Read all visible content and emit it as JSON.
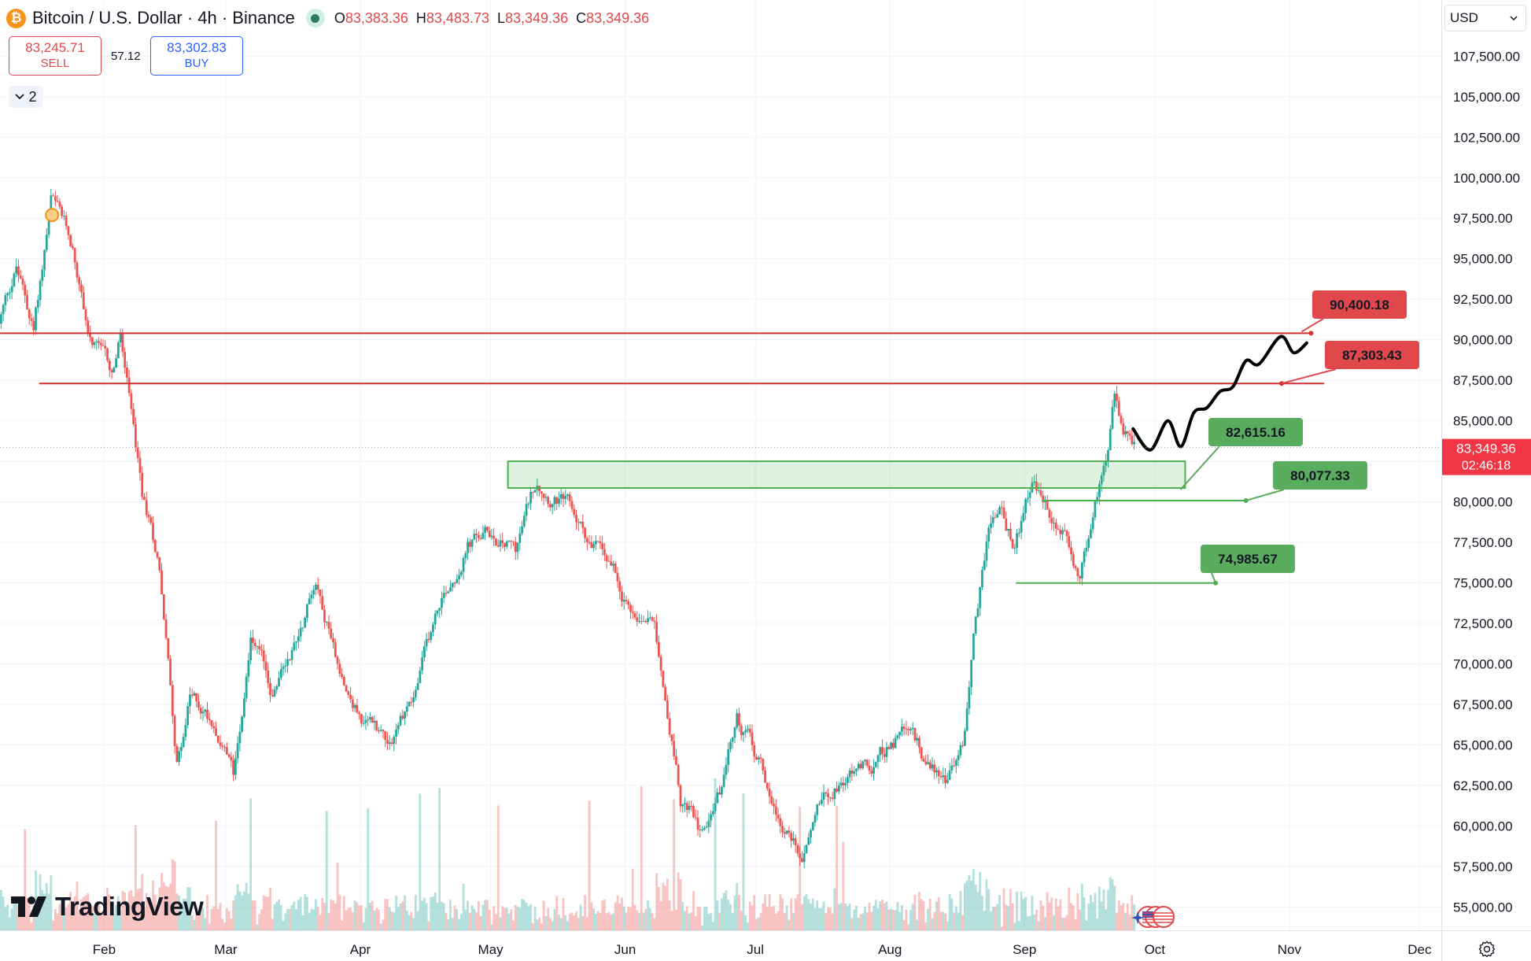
{
  "header": {
    "symbol_title": "Bitcoin / U.S. Dollar · 4h · Binance",
    "coin_glyph": "₿",
    "ohlc": [
      {
        "key": "O",
        "value": "83,383.36"
      },
      {
        "key": "H",
        "value": "83,483.73"
      },
      {
        "key": "L",
        "value": "83,349.36"
      },
      {
        "key": "C",
        "value": "83,349.36"
      }
    ]
  },
  "trade_panel": {
    "sell_price": "83,245.71",
    "sell_label": "SELL",
    "spread": "57.12",
    "buy_price": "83,302.83",
    "buy_label": "BUY"
  },
  "indicator_toggle": {
    "count": "2"
  },
  "currency_selector": {
    "value": "USD"
  },
  "brand": {
    "name": "TradingView"
  },
  "colors": {
    "up": "#26a69a",
    "down": "#ef5350",
    "resistance": "#d32f2f",
    "support": "#4caf50",
    "price_label": "#f23645",
    "grid": "#f0f3fa"
  },
  "chart_data": {
    "type": "candlestick",
    "symbol": "BTCUSD",
    "interval": "4h",
    "exchange": "Binance",
    "x_tick_labels": [
      "Feb",
      "Mar",
      "Apr",
      "May",
      "Jun",
      "Jul",
      "Aug",
      "Sep",
      "Oct",
      "Nov",
      "Dec"
    ],
    "x_range": [
      "2025-01-08",
      "2025-12-06"
    ],
    "y_tick_values": [
      55000,
      57500,
      60000,
      62500,
      65000,
      67500,
      70000,
      72500,
      75000,
      77500,
      80000,
      82500,
      85000,
      87500,
      90000,
      92500,
      95000,
      97500,
      100000,
      102500,
      105000,
      107500
    ],
    "y_tick_labels": [
      "55,000.00",
      "57,500.00",
      "60,000.00",
      "62,500.00",
      "65,000.00",
      "67,500.00",
      "70,000.00",
      "72,500.00",
      "75,000.00",
      "77,500.00",
      "80,000.00",
      "82,500.00",
      "85,000.00",
      "87,500.00",
      "90,000.00",
      "92,500.00",
      "95,000.00",
      "97,500.00",
      "100,000.00",
      "102,500.00",
      "105,000.00",
      "107,500.00"
    ],
    "ylim": [
      53800,
      109800
    ],
    "price_path": [
      {
        "date": "2025-01-08",
        "price": 91000
      },
      {
        "date": "2025-01-12",
        "price": 94500
      },
      {
        "date": "2025-01-16",
        "price": 90500
      },
      {
        "date": "2025-01-20",
        "price": 98500
      },
      {
        "date": "2025-01-25",
        "price": 95500
      },
      {
        "date": "2025-01-29",
        "price": 90000
      },
      {
        "date": "2025-02-03",
        "price": 87500
      },
      {
        "date": "2025-02-05",
        "price": 90000
      },
      {
        "date": "2025-02-10",
        "price": 80000
      },
      {
        "date": "2025-02-14",
        "price": 76000
      },
      {
        "date": "2025-02-18",
        "price": 64000
      },
      {
        "date": "2025-02-21",
        "price": 68000
      },
      {
        "date": "2025-02-27",
        "price": 66500
      },
      {
        "date": "2025-03-03",
        "price": 63000
      },
      {
        "date": "2025-03-07",
        "price": 72000
      },
      {
        "date": "2025-03-12",
        "price": 68000
      },
      {
        "date": "2025-03-18",
        "price": 72000
      },
      {
        "date": "2025-03-22",
        "price": 75500
      },
      {
        "date": "2025-03-27",
        "price": 70500
      },
      {
        "date": "2025-04-02",
        "price": 66500
      },
      {
        "date": "2025-04-08",
        "price": 65500
      },
      {
        "date": "2025-04-14",
        "price": 68500
      },
      {
        "date": "2025-04-20",
        "price": 74000
      },
      {
        "date": "2025-04-26",
        "price": 77500
      },
      {
        "date": "2025-05-02",
        "price": 78000
      },
      {
        "date": "2025-05-07",
        "price": 77000
      },
      {
        "date": "2025-05-12",
        "price": 81500
      },
      {
        "date": "2025-05-18",
        "price": 80000
      },
      {
        "date": "2025-05-24",
        "price": 77500
      },
      {
        "date": "2025-05-30",
        "price": 76000
      },
      {
        "date": "2025-06-03",
        "price": 73000
      },
      {
        "date": "2025-06-08",
        "price": 73500
      },
      {
        "date": "2025-06-14",
        "price": 62000
      },
      {
        "date": "2025-06-18",
        "price": 60000
      },
      {
        "date": "2025-06-23",
        "price": 62500
      },
      {
        "date": "2025-06-27",
        "price": 66500
      },
      {
        "date": "2025-07-02",
        "price": 64000
      },
      {
        "date": "2025-07-07",
        "price": 60500
      },
      {
        "date": "2025-07-12",
        "price": 58500
      },
      {
        "date": "2025-07-17",
        "price": 62500
      },
      {
        "date": "2025-07-23",
        "price": 63500
      },
      {
        "date": "2025-07-29",
        "price": 64000
      },
      {
        "date": "2025-08-04",
        "price": 65500
      },
      {
        "date": "2025-08-09",
        "price": 64000
      },
      {
        "date": "2025-08-14",
        "price": 63000
      },
      {
        "date": "2025-08-18",
        "price": 65000
      },
      {
        "date": "2025-08-21",
        "price": 73000
      },
      {
        "date": "2025-08-24",
        "price": 78500
      },
      {
        "date": "2025-08-27",
        "price": 79500
      },
      {
        "date": "2025-08-30",
        "price": 77000
      },
      {
        "date": "2025-09-03",
        "price": 81000
      },
      {
        "date": "2025-09-07",
        "price": 79000
      },
      {
        "date": "2025-09-11",
        "price": 77500
      },
      {
        "date": "2025-09-14",
        "price": 75500
      },
      {
        "date": "2025-09-17",
        "price": 79000
      },
      {
        "date": "2025-09-20",
        "price": 83000
      },
      {
        "date": "2025-09-22",
        "price": 86500
      },
      {
        "date": "2025-09-24",
        "price": 84000
      },
      {
        "date": "2025-09-26",
        "price": 83300
      }
    ],
    "pivot_high_marker": {
      "date": "2025-01-20",
      "price": 97600
    },
    "resistance_lines": [
      {
        "price": 90400.18,
        "label": "90,400.18",
        "start": "2025-01-08",
        "end": "2025-11-06"
      },
      {
        "price": 87303.43,
        "label": "87,303.43",
        "start": "2025-01-17",
        "end": "2025-11-09"
      }
    ],
    "support_zone": {
      "top": 82500,
      "bottom": 80850,
      "start": "2025-05-05",
      "end": "2025-10-08",
      "label": "82,615.16"
    },
    "support_lines": [
      {
        "price": 80077.33,
        "label": "80,077.33",
        "start": "2025-09-05",
        "end": "2025-10-22"
      },
      {
        "price": 74985.67,
        "label": "74,985.67",
        "start": "2025-08-30",
        "end": "2025-10-15"
      }
    ],
    "projection_path": [
      {
        "date": "2025-09-26",
        "price": 84500
      },
      {
        "date": "2025-09-30",
        "price": 83200
      },
      {
        "date": "2025-10-04",
        "price": 85000
      },
      {
        "date": "2025-10-07",
        "price": 83400
      },
      {
        "date": "2025-10-10",
        "price": 85500
      },
      {
        "date": "2025-10-13",
        "price": 85800
      },
      {
        "date": "2025-10-16",
        "price": 86800
      },
      {
        "date": "2025-10-19",
        "price": 87100
      },
      {
        "date": "2025-10-22",
        "price": 88700
      },
      {
        "date": "2025-10-25",
        "price": 88500
      },
      {
        "date": "2025-10-30",
        "price": 90200
      },
      {
        "date": "2025-11-02",
        "price": 89200
      },
      {
        "date": "2025-11-05",
        "price": 89800
      }
    ],
    "last_price": {
      "price": 83349.36,
      "label": "83,349.36",
      "countdown": "02:46:18"
    },
    "volume_unit_note": "",
    "grid": true,
    "legend": "none"
  }
}
